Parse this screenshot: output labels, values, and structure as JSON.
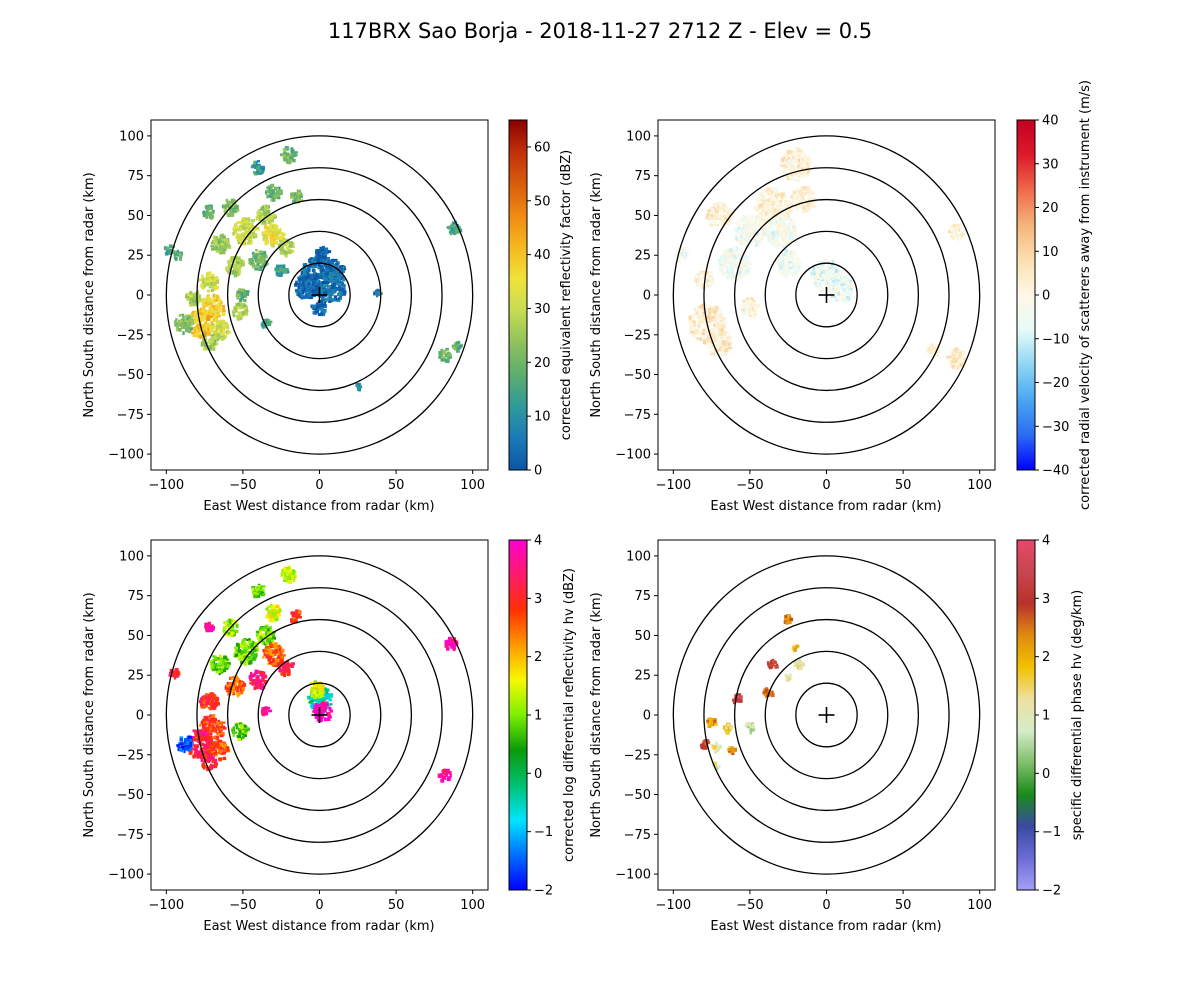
{
  "figure_title": "117BRX Sao Borja - 2018-11-27 2712 Z -  Elev = 0.5",
  "chart_data": [
    {
      "type": "heatmap",
      "variable": "reflectivity",
      "title": "",
      "xlabel": "East West distance from radar (km)",
      "ylabel": "North South distance from radar (km)",
      "xlim": [
        -110,
        110
      ],
      "ylim": [
        -110,
        110
      ],
      "xticks": [
        -100,
        -50,
        0,
        50,
        100
      ],
      "yticks": [
        -100,
        -75,
        -50,
        -25,
        0,
        25,
        50,
        75,
        100
      ],
      "range_rings_km": [
        20,
        40,
        60,
        80,
        100
      ],
      "colorbar": {
        "label": "corrected equivalent reflectivity factor (dBZ)",
        "min": 0,
        "max": 65,
        "ticks": [
          0,
          10,
          20,
          30,
          40,
          50,
          60
        ],
        "colors": [
          "#0a55a8",
          "#1a7bb8",
          "#2f9a9a",
          "#5cae6e",
          "#8fc15c",
          "#c6dc52",
          "#f0e23c",
          "#f6b820",
          "#ef8a12",
          "#d95c0c",
          "#c0300a",
          "#8b0000"
        ]
      },
      "echo_cells": [
        {
          "x": -20,
          "y": 88,
          "r": 5,
          "v": 20
        },
        {
          "x": -40,
          "y": 80,
          "r": 4,
          "v": 12
        },
        {
          "x": -30,
          "y": 64,
          "r": 5,
          "v": 18
        },
        {
          "x": -15,
          "y": 62,
          "r": 4,
          "v": 22
        },
        {
          "x": -35,
          "y": 50,
          "r": 6,
          "v": 26
        },
        {
          "x": -48,
          "y": 40,
          "r": 8,
          "v": 30
        },
        {
          "x": -30,
          "y": 38,
          "r": 7,
          "v": 34
        },
        {
          "x": -22,
          "y": 30,
          "r": 5,
          "v": 28
        },
        {
          "x": -58,
          "y": 55,
          "r": 5,
          "v": 22
        },
        {
          "x": -72,
          "y": 52,
          "r": 4,
          "v": 18
        },
        {
          "x": -65,
          "y": 32,
          "r": 6,
          "v": 24
        },
        {
          "x": -40,
          "y": 22,
          "r": 6,
          "v": 20
        },
        {
          "x": -25,
          "y": 15,
          "r": 4,
          "v": 15
        },
        {
          "x": -55,
          "y": 18,
          "r": 6,
          "v": 26
        },
        {
          "x": -72,
          "y": 8,
          "r": 6,
          "v": 30
        },
        {
          "x": -82,
          "y": -2,
          "r": 5,
          "v": 28
        },
        {
          "x": -70,
          "y": -8,
          "r": 8,
          "v": 38
        },
        {
          "x": -78,
          "y": -18,
          "r": 9,
          "v": 40
        },
        {
          "x": -88,
          "y": -18,
          "r": 6,
          "v": 22
        },
        {
          "x": -65,
          "y": -22,
          "r": 6,
          "v": 30
        },
        {
          "x": -72,
          "y": -30,
          "r": 5,
          "v": 25
        },
        {
          "x": -52,
          "y": -10,
          "r": 5,
          "v": 28
        },
        {
          "x": -92,
          "y": 25,
          "r": 3,
          "v": 18
        },
        {
          "x": -98,
          "y": 28,
          "r": 3,
          "v": 15
        },
        {
          "x": -50,
          "y": 0,
          "r": 4,
          "v": 20
        },
        {
          "x": -35,
          "y": -18,
          "r": 3,
          "v": 14
        },
        {
          "x": 88,
          "y": 42,
          "r": 4,
          "v": 15
        },
        {
          "x": 82,
          "y": -38,
          "r": 4,
          "v": 20
        },
        {
          "x": 90,
          "y": -32,
          "r": 3,
          "v": 18
        },
        {
          "x": 0,
          "y": 12,
          "r": 12,
          "v": 3
        },
        {
          "x": 8,
          "y": 5,
          "r": 10,
          "v": 5
        },
        {
          "x": -8,
          "y": 5,
          "r": 8,
          "v": 2
        },
        {
          "x": 2,
          "y": 25,
          "r": 5,
          "v": 2
        },
        {
          "x": 10,
          "y": 16,
          "r": 6,
          "v": 4
        },
        {
          "x": 0,
          "y": -8,
          "r": 5,
          "v": 3
        },
        {
          "x": 38,
          "y": 1,
          "r": 2,
          "v": 8
        },
        {
          "x": 25,
          "y": -58,
          "r": 2,
          "v": 10
        }
      ]
    },
    {
      "type": "heatmap",
      "variable": "velocity",
      "title": "",
      "xlabel": "East West distance from radar (km)",
      "ylabel": "North South distance from radar (km)",
      "xlim": [
        -110,
        110
      ],
      "ylim": [
        -110,
        110
      ],
      "xticks": [
        -100,
        -50,
        0,
        50,
        100
      ],
      "yticks": [
        -100,
        -75,
        -50,
        -25,
        0,
        25,
        50,
        75,
        100
      ],
      "range_rings_km": [
        20,
        40,
        60,
        80,
        100
      ],
      "colorbar": {
        "label": "corrected radial velocity of scatterers away from instrument (m/s)",
        "min": -40,
        "max": 40,
        "ticks": [
          -40,
          -30,
          -20,
          -10,
          0,
          10,
          20,
          30,
          40
        ],
        "colors": [
          "#0000ff",
          "#2a6df2",
          "#4aa6f0",
          "#8ed6f4",
          "#e6fbf8",
          "#fff8e6",
          "#fbe0b0",
          "#f6b47a",
          "#ee6a4a",
          "#dd1a2a",
          "#c40022"
        ]
      },
      "echo_cells": [
        {
          "x": -20,
          "y": 82,
          "r": 10,
          "v": 3
        },
        {
          "x": -35,
          "y": 55,
          "r": 12,
          "v": 2
        },
        {
          "x": -50,
          "y": 40,
          "r": 10,
          "v": -3
        },
        {
          "x": -30,
          "y": 40,
          "r": 10,
          "v": -4
        },
        {
          "x": -15,
          "y": 60,
          "r": 8,
          "v": 2
        },
        {
          "x": -70,
          "y": 50,
          "r": 8,
          "v": 3
        },
        {
          "x": -60,
          "y": 20,
          "r": 10,
          "v": -4
        },
        {
          "x": -80,
          "y": 10,
          "r": 6,
          "v": 2
        },
        {
          "x": -78,
          "y": -18,
          "r": 12,
          "v": 4
        },
        {
          "x": -70,
          "y": -30,
          "r": 8,
          "v": 3
        },
        {
          "x": -50,
          "y": -8,
          "r": 6,
          "v": 2
        },
        {
          "x": -95,
          "y": 25,
          "r": 4,
          "v": -4
        },
        {
          "x": -25,
          "y": 20,
          "r": 8,
          "v": -5
        },
        {
          "x": 0,
          "y": 12,
          "r": 10,
          "v": -6
        },
        {
          "x": 10,
          "y": 4,
          "r": 8,
          "v": -5
        },
        {
          "x": 85,
          "y": 40,
          "r": 5,
          "v": 2
        },
        {
          "x": 85,
          "y": -40,
          "r": 6,
          "v": 4
        },
        {
          "x": 70,
          "y": -35,
          "r": 4,
          "v": 2
        }
      ]
    },
    {
      "type": "heatmap",
      "variable": "differential_reflectivity",
      "title": "",
      "xlabel": "East West distance from radar (km)",
      "ylabel": "North South distance from radar (km)",
      "xlim": [
        -110,
        110
      ],
      "ylim": [
        -110,
        110
      ],
      "xticks": [
        -100,
        -50,
        0,
        50,
        100
      ],
      "yticks": [
        -100,
        -75,
        -50,
        -25,
        0,
        25,
        50,
        75,
        100
      ],
      "range_rings_km": [
        20,
        40,
        60,
        80,
        100
      ],
      "colorbar": {
        "label": "corrected log differential reflectivity hv (dBZ)",
        "min": -2,
        "max": 4,
        "ticks": [
          -2,
          -1,
          0,
          1,
          2,
          3,
          4
        ],
        "colors": [
          "#0000ff",
          "#0070ff",
          "#00e5ff",
          "#00c070",
          "#0a9a0a",
          "#7cf000",
          "#f8f800",
          "#ff9a00",
          "#ff3000",
          "#ff1a6a",
          "#ff00d0"
        ]
      },
      "echo_cells": [
        {
          "x": -20,
          "y": 88,
          "r": 5,
          "v": 1.2
        },
        {
          "x": -40,
          "y": 78,
          "r": 4,
          "v": 0.8
        },
        {
          "x": -30,
          "y": 64,
          "r": 5,
          "v": 1.5
        },
        {
          "x": -15,
          "y": 62,
          "r": 4,
          "v": 2.8
        },
        {
          "x": -35,
          "y": 50,
          "r": 6,
          "v": 1.0
        },
        {
          "x": -48,
          "y": 40,
          "r": 8,
          "v": 0.9
        },
        {
          "x": -30,
          "y": 38,
          "r": 7,
          "v": 2.6
        },
        {
          "x": -22,
          "y": 30,
          "r": 5,
          "v": 3.2
        },
        {
          "x": -58,
          "y": 55,
          "r": 5,
          "v": 1.1
        },
        {
          "x": -72,
          "y": 55,
          "r": 3,
          "v": 3.8
        },
        {
          "x": -65,
          "y": 32,
          "r": 6,
          "v": 0.9
        },
        {
          "x": -40,
          "y": 22,
          "r": 6,
          "v": 3.5
        },
        {
          "x": -55,
          "y": 18,
          "r": 6,
          "v": 2.5
        },
        {
          "x": -72,
          "y": 8,
          "r": 6,
          "v": 3.0
        },
        {
          "x": -70,
          "y": -8,
          "r": 8,
          "v": 2.8
        },
        {
          "x": -78,
          "y": -18,
          "r": 9,
          "v": 3.3
        },
        {
          "x": -88,
          "y": -18,
          "r": 5,
          "v": -1.5
        },
        {
          "x": -65,
          "y": -22,
          "r": 6,
          "v": 2.7
        },
        {
          "x": -72,
          "y": -30,
          "r": 5,
          "v": 3.1
        },
        {
          "x": -52,
          "y": -10,
          "r": 5,
          "v": 0.9
        },
        {
          "x": -95,
          "y": 26,
          "r": 3,
          "v": 3.0
        },
        {
          "x": -35,
          "y": 2,
          "r": 3,
          "v": 3.6
        },
        {
          "x": 86,
          "y": 45,
          "r": 4,
          "v": 3.7
        },
        {
          "x": 82,
          "y": -38,
          "r": 4,
          "v": 3.8
        },
        {
          "x": 0,
          "y": 10,
          "r": 8,
          "v": -0.5
        },
        {
          "x": 2,
          "y": 2,
          "r": 6,
          "v": 3.9
        },
        {
          "x": -2,
          "y": 16,
          "r": 5,
          "v": 1.5
        }
      ]
    },
    {
      "type": "heatmap",
      "variable": "specific_differential_phase",
      "title": "",
      "xlabel": "East West distance from radar (km)",
      "ylabel": "North South distance from radar (km)",
      "xlim": [
        -110,
        110
      ],
      "ylim": [
        -110,
        110
      ],
      "xticks": [
        -100,
        -50,
        0,
        50,
        100
      ],
      "yticks": [
        -100,
        -75,
        -50,
        -25,
        0,
        25,
        50,
        75,
        100
      ],
      "range_rings_km": [
        20,
        40,
        60,
        80,
        100
      ],
      "colorbar": {
        "label": "specific differential phase hv (deg/km)",
        "min": -2,
        "max": 4,
        "ticks": [
          -2,
          -1,
          0,
          1,
          2,
          3,
          4
        ],
        "colors": [
          "#a4a0f6",
          "#6c6cd6",
          "#3a4aa0",
          "#1a8a1a",
          "#7fbf6a",
          "#d6ecc8",
          "#ece0a0",
          "#f2c200",
          "#e08a10",
          "#b8322a",
          "#c84650",
          "#e8486a"
        ]
      },
      "echo_cells": [
        {
          "x": -25,
          "y": 60,
          "r": 3,
          "v": 2.5
        },
        {
          "x": -20,
          "y": 42,
          "r": 2,
          "v": 2.0
        },
        {
          "x": -35,
          "y": 32,
          "r": 3,
          "v": 3.0
        },
        {
          "x": -18,
          "y": 32,
          "r": 3,
          "v": 1.2
        },
        {
          "x": -25,
          "y": 24,
          "r": 2,
          "v": 1.0
        },
        {
          "x": -38,
          "y": 14,
          "r": 3,
          "v": 2.6
        },
        {
          "x": -58,
          "y": 10,
          "r": 3,
          "v": 3.2
        },
        {
          "x": -75,
          "y": -5,
          "r": 3,
          "v": 2.2
        },
        {
          "x": -65,
          "y": -8,
          "r": 3,
          "v": 1.5
        },
        {
          "x": -80,
          "y": -18,
          "r": 3,
          "v": 3.0
        },
        {
          "x": -72,
          "y": -20,
          "r": 3,
          "v": 1.2
        },
        {
          "x": -50,
          "y": -8,
          "r": 3,
          "v": 0.8
        },
        {
          "x": -62,
          "y": -22,
          "r": 2,
          "v": 2.3
        },
        {
          "x": -72,
          "y": -32,
          "r": 2,
          "v": 1.0
        }
      ]
    }
  ]
}
